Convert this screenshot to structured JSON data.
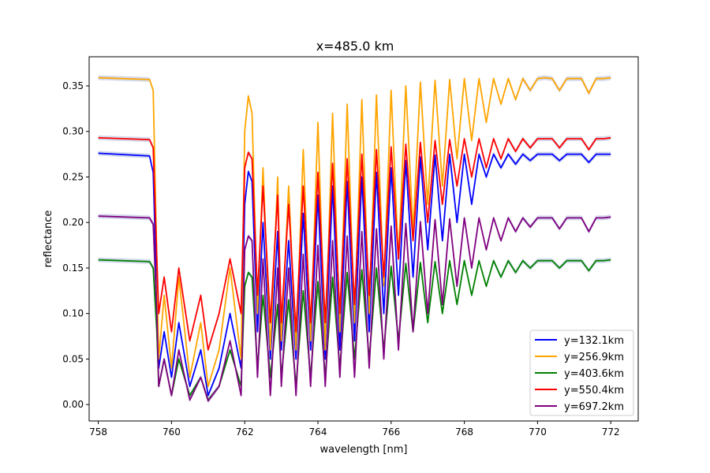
{
  "chart_data": {
    "type": "line",
    "title": "x=485.0 km",
    "xlabel": "wavelength [nm]",
    "ylabel": "reflectance",
    "xlim": [
      757.75,
      772.75
    ],
    "ylim": [
      -0.018,
      0.382
    ],
    "x_ticks": [
      758,
      760,
      762,
      764,
      766,
      768,
      770,
      772
    ],
    "x_tick_labels": [
      "758",
      "760",
      "762",
      "764",
      "766",
      "768",
      "770",
      "772"
    ],
    "y_ticks": [
      0.0,
      0.05,
      0.1,
      0.15,
      0.2,
      0.25,
      0.3,
      0.35
    ],
    "y_tick_labels": [
      "0.00",
      "0.05",
      "0.10",
      "0.15",
      "0.20",
      "0.25",
      "0.30",
      "0.35"
    ],
    "grid": false,
    "legend_position": "lower-right",
    "band_color": "#c7cfe6",
    "x_domain": [
      758,
      772
    ],
    "series": [
      {
        "name": "y=132.1km",
        "color": "#0000ff",
        "continuum": 0.276,
        "x": [
          758.0,
          759.4,
          759.5,
          759.6,
          759.65,
          759.8,
          760.0,
          760.2,
          760.5,
          760.8,
          761.0,
          761.3,
          761.6,
          761.9,
          762.0,
          762.1,
          762.2,
          762.35,
          762.5,
          762.7,
          762.9,
          763.0,
          763.2,
          763.4,
          763.6,
          763.8,
          764.0,
          764.2,
          764.4,
          764.6,
          764.8,
          765.0,
          765.2,
          765.4,
          765.6,
          765.8,
          766.0,
          766.2,
          766.4,
          766.6,
          766.8,
          767.0,
          767.2,
          767.4,
          767.6,
          767.8,
          768.0,
          768.2,
          768.4,
          768.6,
          768.8,
          769.0,
          769.2,
          769.4,
          769.6,
          769.8,
          770.0,
          770.2,
          770.4,
          770.6,
          770.8,
          771.0,
          771.2,
          771.4,
          771.6,
          771.8,
          772.0
        ],
        "y": [
          0.276,
          0.273,
          0.255,
          0.12,
          0.04,
          0.08,
          0.03,
          0.09,
          0.02,
          0.06,
          0.01,
          0.04,
          0.1,
          0.04,
          0.22,
          0.256,
          0.245,
          0.08,
          0.2,
          0.05,
          0.19,
          0.06,
          0.18,
          0.05,
          0.21,
          0.06,
          0.23,
          0.05,
          0.24,
          0.06,
          0.245,
          0.07,
          0.25,
          0.08,
          0.255,
          0.1,
          0.26,
          0.12,
          0.268,
          0.14,
          0.272,
          0.17,
          0.274,
          0.18,
          0.275,
          0.2,
          0.275,
          0.22,
          0.275,
          0.25,
          0.275,
          0.26,
          0.275,
          0.264,
          0.275,
          0.268,
          0.275,
          0.275,
          0.275,
          0.268,
          0.275,
          0.275,
          0.275,
          0.266,
          0.275,
          0.275,
          0.275
        ]
      },
      {
        "name": "y=256.9km",
        "color": "#ffa500",
        "continuum": 0.359,
        "x": [
          758.0,
          759.4,
          759.5,
          759.6,
          759.65,
          759.8,
          760.0,
          760.2,
          760.5,
          760.8,
          761.0,
          761.3,
          761.6,
          761.9,
          762.0,
          762.1,
          762.2,
          762.35,
          762.5,
          762.7,
          762.9,
          763.0,
          763.2,
          763.4,
          763.6,
          763.8,
          764.0,
          764.2,
          764.4,
          764.6,
          764.8,
          765.0,
          765.2,
          765.4,
          765.6,
          765.8,
          766.0,
          766.2,
          766.4,
          766.6,
          766.8,
          767.0,
          767.2,
          767.4,
          767.6,
          767.8,
          768.0,
          768.2,
          768.4,
          768.6,
          768.8,
          769.0,
          769.2,
          769.4,
          769.6,
          769.8,
          770.0,
          770.2,
          770.4,
          770.6,
          770.8,
          771.0,
          771.2,
          771.4,
          771.6,
          771.8,
          772.0
        ],
        "y": [
          0.359,
          0.357,
          0.345,
          0.16,
          0.05,
          0.12,
          0.04,
          0.14,
          0.03,
          0.09,
          0.02,
          0.06,
          0.15,
          0.05,
          0.3,
          0.339,
          0.32,
          0.1,
          0.26,
          0.06,
          0.25,
          0.07,
          0.24,
          0.06,
          0.28,
          0.07,
          0.31,
          0.06,
          0.32,
          0.08,
          0.33,
          0.09,
          0.335,
          0.1,
          0.34,
          0.13,
          0.345,
          0.16,
          0.35,
          0.19,
          0.354,
          0.22,
          0.356,
          0.24,
          0.357,
          0.27,
          0.358,
          0.29,
          0.358,
          0.31,
          0.358,
          0.33,
          0.358,
          0.335,
          0.358,
          0.345,
          0.358,
          0.359,
          0.358,
          0.345,
          0.358,
          0.358,
          0.358,
          0.342,
          0.358,
          0.358,
          0.359
        ]
      },
      {
        "name": "y=403.6km",
        "color": "#008000",
        "continuum": 0.159,
        "x": [
          758.0,
          759.4,
          759.5,
          759.6,
          759.65,
          759.8,
          760.0,
          760.2,
          760.5,
          760.8,
          761.0,
          761.3,
          761.6,
          761.9,
          762.0,
          762.1,
          762.2,
          762.35,
          762.5,
          762.7,
          762.9,
          763.0,
          763.2,
          763.4,
          763.6,
          763.8,
          764.0,
          764.2,
          764.4,
          764.6,
          764.8,
          765.0,
          765.2,
          765.4,
          765.6,
          765.8,
          766.0,
          766.2,
          766.4,
          766.6,
          766.8,
          767.0,
          767.2,
          767.4,
          767.6,
          767.8,
          768.0,
          768.2,
          768.4,
          768.6,
          768.8,
          769.0,
          769.2,
          769.4,
          769.6,
          769.8,
          770.0,
          770.2,
          770.4,
          770.6,
          770.8,
          771.0,
          771.2,
          771.4,
          771.6,
          771.8,
          772.0
        ],
        "y": [
          0.159,
          0.157,
          0.15,
          0.08,
          0.02,
          0.05,
          0.01,
          0.05,
          0.01,
          0.03,
          0.005,
          0.02,
          0.06,
          0.02,
          0.13,
          0.145,
          0.14,
          0.04,
          0.12,
          0.03,
          0.11,
          0.03,
          0.115,
          0.02,
          0.125,
          0.03,
          0.135,
          0.03,
          0.14,
          0.04,
          0.145,
          0.05,
          0.148,
          0.05,
          0.15,
          0.06,
          0.152,
          0.07,
          0.155,
          0.08,
          0.156,
          0.09,
          0.157,
          0.1,
          0.158,
          0.11,
          0.158,
          0.12,
          0.158,
          0.13,
          0.158,
          0.14,
          0.158,
          0.145,
          0.158,
          0.15,
          0.158,
          0.158,
          0.158,
          0.15,
          0.158,
          0.158,
          0.158,
          0.147,
          0.158,
          0.158,
          0.159
        ]
      },
      {
        "name": "y=550.4km",
        "color": "#ff0000",
        "continuum": 0.293,
        "x": [
          758.0,
          759.4,
          759.5,
          759.6,
          759.65,
          759.8,
          760.0,
          760.2,
          760.5,
          760.8,
          761.0,
          761.3,
          761.6,
          761.9,
          762.0,
          762.1,
          762.2,
          762.35,
          762.5,
          762.7,
          762.9,
          763.0,
          763.2,
          763.4,
          763.6,
          763.8,
          764.0,
          764.2,
          764.4,
          764.6,
          764.8,
          765.0,
          765.2,
          765.4,
          765.6,
          765.8,
          766.0,
          766.2,
          766.4,
          766.6,
          766.8,
          767.0,
          767.2,
          767.4,
          767.6,
          767.8,
          768.0,
          768.2,
          768.4,
          768.6,
          768.8,
          769.0,
          769.2,
          769.4,
          769.6,
          769.8,
          770.0,
          770.2,
          770.4,
          770.6,
          770.8,
          771.0,
          771.2,
          771.4,
          771.6,
          771.8,
          772.0
        ],
        "y": [
          0.293,
          0.291,
          0.282,
          0.16,
          0.1,
          0.14,
          0.08,
          0.15,
          0.07,
          0.12,
          0.06,
          0.1,
          0.16,
          0.1,
          0.26,
          0.277,
          0.27,
          0.12,
          0.24,
          0.09,
          0.23,
          0.09,
          0.22,
          0.08,
          0.24,
          0.09,
          0.255,
          0.09,
          0.265,
          0.1,
          0.27,
          0.11,
          0.275,
          0.12,
          0.28,
          0.14,
          0.283,
          0.16,
          0.286,
          0.18,
          0.288,
          0.2,
          0.29,
          0.22,
          0.291,
          0.24,
          0.292,
          0.25,
          0.292,
          0.26,
          0.292,
          0.27,
          0.292,
          0.278,
          0.292,
          0.282,
          0.292,
          0.292,
          0.292,
          0.282,
          0.292,
          0.292,
          0.292,
          0.28,
          0.292,
          0.292,
          0.293
        ]
      },
      {
        "name": "y=697.2km",
        "color": "#800080",
        "continuum": 0.207,
        "x": [
          758.0,
          759.4,
          759.5,
          759.6,
          759.65,
          759.8,
          760.0,
          760.2,
          760.5,
          760.8,
          761.0,
          761.3,
          761.6,
          761.9,
          762.0,
          762.1,
          762.2,
          762.35,
          762.5,
          762.7,
          762.9,
          763.0,
          763.2,
          763.4,
          763.6,
          763.8,
          764.0,
          764.2,
          764.4,
          764.6,
          764.8,
          765.0,
          765.2,
          765.4,
          765.6,
          765.8,
          766.0,
          766.2,
          766.4,
          766.6,
          766.8,
          767.0,
          767.2,
          767.4,
          767.6,
          767.8,
          768.0,
          768.2,
          768.4,
          768.6,
          768.8,
          769.0,
          769.2,
          769.4,
          769.6,
          769.8,
          770.0,
          770.2,
          770.4,
          770.6,
          770.8,
          771.0,
          771.2,
          771.4,
          771.6,
          771.8,
          772.0
        ],
        "y": [
          0.207,
          0.205,
          0.198,
          0.1,
          0.02,
          0.05,
          0.01,
          0.06,
          0.005,
          0.03,
          0.004,
          0.02,
          0.07,
          0.01,
          0.17,
          0.185,
          0.18,
          0.03,
          0.16,
          0.01,
          0.15,
          0.02,
          0.15,
          0.01,
          0.165,
          0.02,
          0.175,
          0.02,
          0.18,
          0.03,
          0.185,
          0.03,
          0.19,
          0.04,
          0.193,
          0.05,
          0.196,
          0.06,
          0.199,
          0.08,
          0.201,
          0.1,
          0.203,
          0.11,
          0.204,
          0.13,
          0.205,
          0.15,
          0.205,
          0.17,
          0.205,
          0.18,
          0.205,
          0.19,
          0.205,
          0.195,
          0.205,
          0.205,
          0.205,
          0.193,
          0.205,
          0.205,
          0.205,
          0.19,
          0.205,
          0.205,
          0.206
        ]
      }
    ]
  }
}
